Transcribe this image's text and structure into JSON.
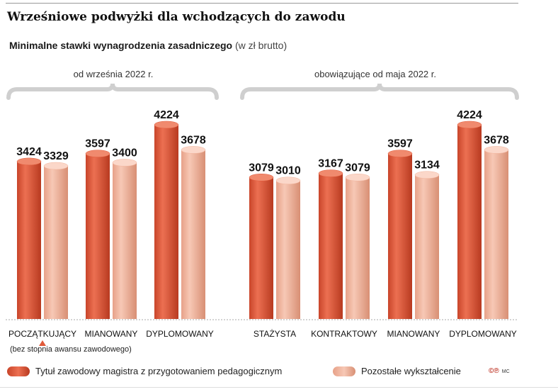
{
  "title": "Wrześniowe podwyżki dla wchodzących do zawodu",
  "subtitle": {
    "bold": "Minimalne stawki wynagrodzenia zasadniczego",
    "unit": "(w zł brutto)"
  },
  "groups": [
    {
      "label": "od września 2022 r."
    },
    {
      "label": "obowiązujące od maja 2022 r."
    }
  ],
  "note": "(bez stopnia awansu zawodowego)",
  "legend": [
    {
      "label": "Tytuł zawodowy magistra z przygotowaniem pedagogicznym",
      "color": "#e05a3a"
    },
    {
      "label": "Pozostałe wykształcenie",
      "color": "#f2b49c"
    }
  ],
  "credit": {
    "logo": "cp",
    "initials": "MC"
  },
  "colors": {
    "series1": "#e05a3a",
    "series2": "#f2b49c",
    "series1_dark": "#b83a20",
    "series2_dark": "#d88f74"
  },
  "chart_data": [
    {
      "type": "bar",
      "group": "od września 2022 r.",
      "categories": [
        "POCZĄTKUJĄCY",
        "MIANOWANY",
        "DYPLOMOWANY"
      ],
      "series": [
        {
          "name": "Tytuł zawodowy magistra z przygotowaniem pedagogicznym",
          "values": [
            3424,
            3597,
            4224
          ]
        },
        {
          "name": "Pozostałe wykształcenie",
          "values": [
            3329,
            3400,
            3678
          ]
        }
      ],
      "ylim": [
        0,
        4224
      ]
    },
    {
      "type": "bar",
      "group": "obowiązujące od maja 2022 r.",
      "categories": [
        "STAŻYSTA",
        "KONTRAKTOWY",
        "MIANOWANY",
        "DYPLOMOWANY"
      ],
      "series": [
        {
          "name": "Tytuł zawodowy magistra z przygotowaniem pedagogicznym",
          "values": [
            3079,
            3167,
            3597,
            4224
          ]
        },
        {
          "name": "Pozostałe wykształcenie",
          "values": [
            3010,
            3079,
            3134,
            3678
          ]
        }
      ],
      "ylim": [
        0,
        4224
      ]
    }
  ]
}
